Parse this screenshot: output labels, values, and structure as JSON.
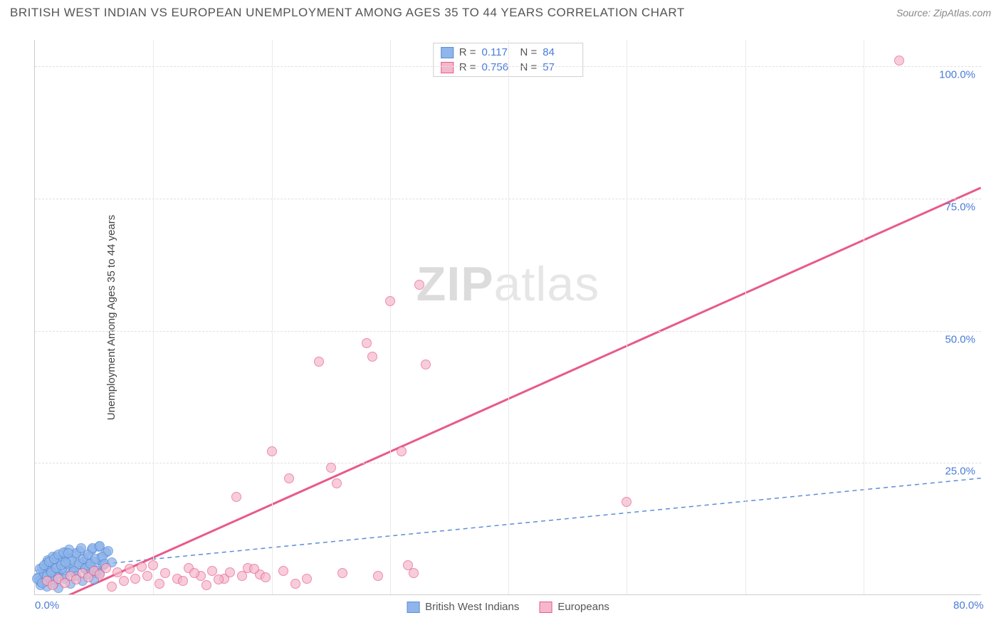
{
  "title": "BRITISH WEST INDIAN VS EUROPEAN UNEMPLOYMENT AMONG AGES 35 TO 44 YEARS CORRELATION CHART",
  "source": "Source: ZipAtlas.com",
  "watermark_part1": "ZIP",
  "watermark_part2": "atlas",
  "chart": {
    "type": "scatter",
    "ylabel": "Unemployment Among Ages 35 to 44 years",
    "xlim": [
      0,
      80
    ],
    "ylim": [
      0,
      105
    ],
    "xticks": [
      {
        "v": 0,
        "label": "0.0%"
      },
      {
        "v": 80,
        "label": "80.0%"
      }
    ],
    "xticks_minor_v": [
      10,
      20,
      30,
      40,
      50,
      60,
      70
    ],
    "yticks": [
      {
        "v": 25,
        "label": "25.0%"
      },
      {
        "v": 50,
        "label": "50.0%"
      },
      {
        "v": 75,
        "label": "75.0%"
      },
      {
        "v": 100,
        "label": "100.0%"
      }
    ],
    "background_color": "#ffffff",
    "grid_color": "#e0e0e0",
    "axis_color": "#cccccc",
    "tick_label_color": "#4a7bd8",
    "title_color": "#555555",
    "title_fontsize": 17,
    "label_fontsize": 15,
    "series": [
      {
        "name": "British West Indians",
        "legend_label": "British West Indians",
        "fill_color": "#8fb5ea",
        "stroke_color": "#5c8ed6",
        "marker_radius": 7,
        "marker_opacity": 0.75,
        "correlation_r": "0.117",
        "correlation_n": "84",
        "trend": {
          "x1": 0,
          "y1": 4.5,
          "x2": 80,
          "y2": 22,
          "color": "#5c8ed6",
          "dash": "6 5",
          "width": 1.5
        },
        "points": [
          [
            0.3,
            3.2
          ],
          [
            0.5,
            1.8
          ],
          [
            0.7,
            4.5
          ],
          [
            0.9,
            2.4
          ],
          [
            1.0,
            6.0
          ],
          [
            1.2,
            3.0
          ],
          [
            1.4,
            5.2
          ],
          [
            1.6,
            2.0
          ],
          [
            1.8,
            7.1
          ],
          [
            2.0,
            4.0
          ],
          [
            2.2,
            6.5
          ],
          [
            2.4,
            3.5
          ],
          [
            2.6,
            8.0
          ],
          [
            2.8,
            5.0
          ],
          [
            3.0,
            6.8
          ],
          [
            3.2,
            4.2
          ],
          [
            3.4,
            7.5
          ],
          [
            3.6,
            5.5
          ],
          [
            3.8,
            8.2
          ],
          [
            4.0,
            6.0
          ],
          [
            4.2,
            4.8
          ],
          [
            4.4,
            7.0
          ],
          [
            4.6,
            5.2
          ],
          [
            4.8,
            8.5
          ],
          [
            5.0,
            6.2
          ],
          [
            5.2,
            4.0
          ],
          [
            5.4,
            9.0
          ],
          [
            5.6,
            7.0
          ],
          [
            5.8,
            5.5
          ],
          [
            6.0,
            8.0
          ],
          [
            0.4,
            2.5
          ],
          [
            0.6,
            5.0
          ],
          [
            0.8,
            3.8
          ],
          [
            1.1,
            6.5
          ],
          [
            1.3,
            4.5
          ],
          [
            1.5,
            7.2
          ],
          [
            1.7,
            5.0
          ],
          [
            1.9,
            3.2
          ],
          [
            2.1,
            6.0
          ],
          [
            2.3,
            4.8
          ],
          [
            2.5,
            7.5
          ],
          [
            2.7,
            5.8
          ],
          [
            2.9,
            8.5
          ],
          [
            3.1,
            6.5
          ],
          [
            3.3,
            4.5
          ],
          [
            3.5,
            7.8
          ],
          [
            3.7,
            5.8
          ],
          [
            3.9,
            8.8
          ],
          [
            4.1,
            6.8
          ],
          [
            4.3,
            5.0
          ],
          [
            4.5,
            7.5
          ],
          [
            4.7,
            5.8
          ],
          [
            4.9,
            8.8
          ],
          [
            5.1,
            6.8
          ],
          [
            5.3,
            4.5
          ],
          [
            5.5,
            9.2
          ],
          [
            5.7,
            7.2
          ],
          [
            5.9,
            5.8
          ],
          [
            6.2,
            8.2
          ],
          [
            6.5,
            6.0
          ],
          [
            1.0,
            1.5
          ],
          [
            1.5,
            2.8
          ],
          [
            2.0,
            1.2
          ],
          [
            2.5,
            3.0
          ],
          [
            3.0,
            2.0
          ],
          [
            3.5,
            3.5
          ],
          [
            4.0,
            2.5
          ],
          [
            4.5,
            3.8
          ],
          [
            5.0,
            2.8
          ],
          [
            5.5,
            4.0
          ],
          [
            0.2,
            3.0
          ],
          [
            0.4,
            4.8
          ],
          [
            0.6,
            2.2
          ],
          [
            0.8,
            5.5
          ],
          [
            1.0,
            3.5
          ],
          [
            1.2,
            6.2
          ],
          [
            1.4,
            4.2
          ],
          [
            1.6,
            6.8
          ],
          [
            1.8,
            5.0
          ],
          [
            2.0,
            7.5
          ],
          [
            2.2,
            5.5
          ],
          [
            2.4,
            8.0
          ],
          [
            2.6,
            6.0
          ],
          [
            2.8,
            7.8
          ]
        ]
      },
      {
        "name": "Europeans",
        "legend_label": "Europeans",
        "fill_color": "#f5b8ca",
        "stroke_color": "#e85a8a",
        "marker_radius": 7,
        "marker_opacity": 0.7,
        "correlation_r": "0.756",
        "correlation_n": "57",
        "trend": {
          "x1": 1,
          "y1": -2,
          "x2": 80,
          "y2": 77,
          "color": "#e85a8a",
          "dash": "",
          "width": 3
        },
        "points": [
          [
            1.0,
            2.5
          ],
          [
            1.5,
            1.8
          ],
          [
            2.0,
            3.0
          ],
          [
            2.5,
            2.2
          ],
          [
            3.0,
            3.5
          ],
          [
            3.5,
            2.8
          ],
          [
            4.0,
            4.0
          ],
          [
            4.5,
            3.2
          ],
          [
            5.0,
            4.5
          ],
          [
            5.5,
            3.8
          ],
          [
            6.0,
            5.0
          ],
          [
            6.5,
            1.5
          ],
          [
            7.0,
            4.2
          ],
          [
            7.5,
            2.5
          ],
          [
            8.0,
            4.8
          ],
          [
            8.5,
            3.0
          ],
          [
            9.0,
            5.2
          ],
          [
            9.5,
            3.5
          ],
          [
            10.0,
            5.5
          ],
          [
            10.5,
            2.0
          ],
          [
            11.0,
            4.0
          ],
          [
            12.0,
            3.0
          ],
          [
            13.0,
            5.0
          ],
          [
            14.0,
            3.5
          ],
          [
            14.5,
            1.8
          ],
          [
            15.0,
            4.5
          ],
          [
            16.0,
            3.0
          ],
          [
            17.0,
            18.5
          ],
          [
            18.0,
            5.0
          ],
          [
            19.0,
            3.8
          ],
          [
            20.0,
            27.0
          ],
          [
            21.0,
            4.5
          ],
          [
            21.5,
            22.0
          ],
          [
            22.0,
            2.0
          ],
          [
            23.0,
            3.0
          ],
          [
            24.0,
            44.0
          ],
          [
            25.0,
            24.0
          ],
          [
            25.5,
            21.0
          ],
          [
            26.0,
            4.0
          ],
          [
            28.0,
            47.5
          ],
          [
            28.5,
            45.0
          ],
          [
            29.0,
            3.5
          ],
          [
            30.0,
            55.5
          ],
          [
            31.0,
            27.0
          ],
          [
            31.5,
            5.5
          ],
          [
            32.0,
            4.0
          ],
          [
            32.5,
            58.5
          ],
          [
            33.0,
            43.5
          ],
          [
            50.0,
            17.5
          ],
          [
            73.0,
            101.0
          ],
          [
            12.5,
            2.5
          ],
          [
            13.5,
            4.0
          ],
          [
            15.5,
            2.8
          ],
          [
            16.5,
            4.2
          ],
          [
            17.5,
            3.5
          ],
          [
            18.5,
            4.8
          ],
          [
            19.5,
            3.2
          ]
        ]
      }
    ],
    "legend": {
      "position": "bottom-center",
      "swatch_border": 1
    },
    "correlation_box": {
      "r_label": "R =",
      "n_label": "N ="
    }
  }
}
